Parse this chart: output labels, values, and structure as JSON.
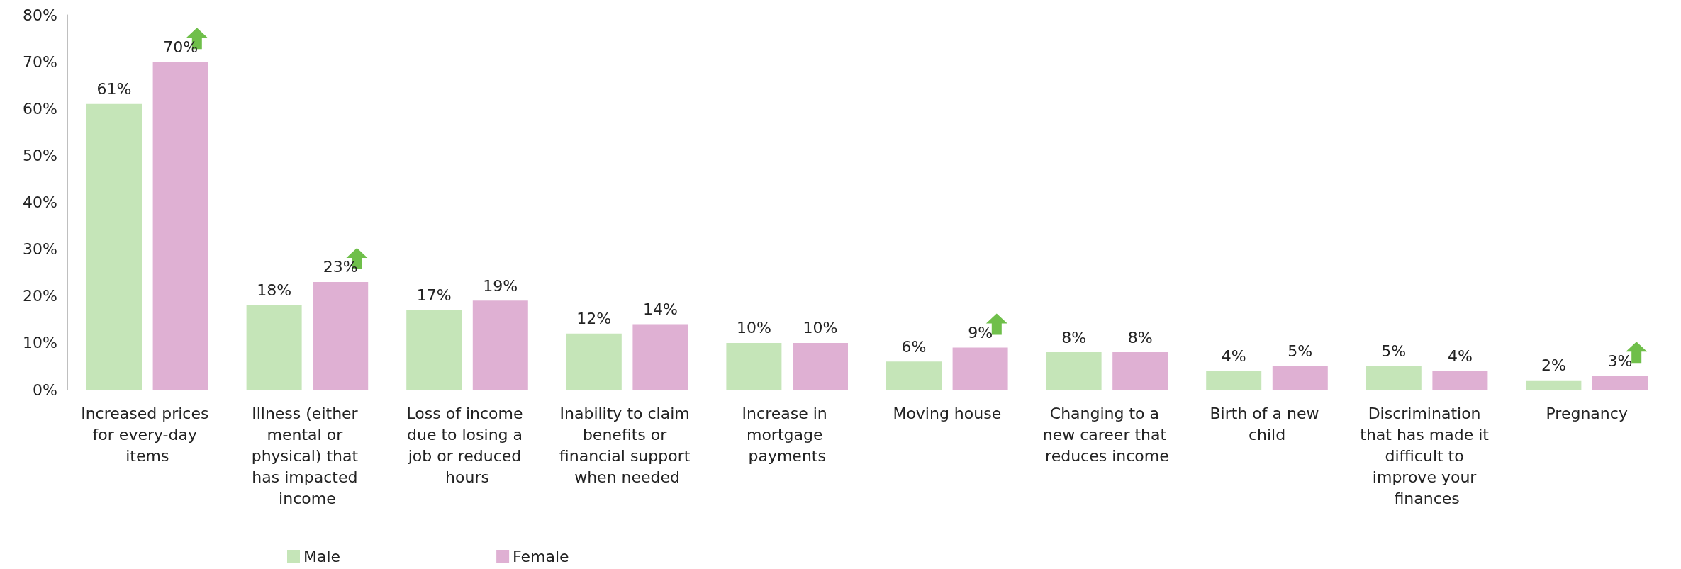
{
  "chart_data": {
    "type": "bar",
    "categories": [
      "Increased prices for every-day items",
      "Illness (either mental or physical) that has impacted income",
      "Loss of income due to losing a job or reduced hours",
      "Inability to claim benefits or financial support when needed",
      "Increase in mortgage payments",
      "Moving house",
      "Changing to a new career that reduces income",
      "Birth of a new child",
      "Discrimination that has made it difficult to improve your finances",
      "Pregnancy"
    ],
    "series": [
      {
        "name": "Male",
        "color": "#c5e5b8",
        "values": [
          61,
          18,
          17,
          12,
          10,
          6,
          8,
          4,
          5,
          2
        ],
        "value_labels": [
          "61%",
          "18%",
          "17%",
          "12%",
          "10%",
          "6%",
          "8%",
          "4%",
          "5%",
          "2%"
        ]
      },
      {
        "name": "Female",
        "color": "#dfb0d3",
        "values": [
          70,
          23,
          19,
          14,
          10,
          9,
          8,
          5,
          4,
          3
        ],
        "value_labels": [
          "70%",
          "23%",
          "19%",
          "14%",
          "10%",
          "9%",
          "8%",
          "5%",
          "4%",
          "3%"
        ]
      }
    ],
    "ylim": [
      0,
      80
    ],
    "yticks": [
      {
        "value": 0,
        "label": "0%"
      },
      {
        "value": 10,
        "label": "10%"
      },
      {
        "value": 20,
        "label": "20%"
      },
      {
        "value": 30,
        "label": "30%"
      },
      {
        "value": 40,
        "label": "40%"
      },
      {
        "value": 50,
        "label": "50%"
      },
      {
        "value": 60,
        "label": "60%"
      },
      {
        "value": 70,
        "label": "70%"
      },
      {
        "value": 80,
        "label": "80%"
      }
    ],
    "grid": false,
    "legend": "bottom left"
  }
}
